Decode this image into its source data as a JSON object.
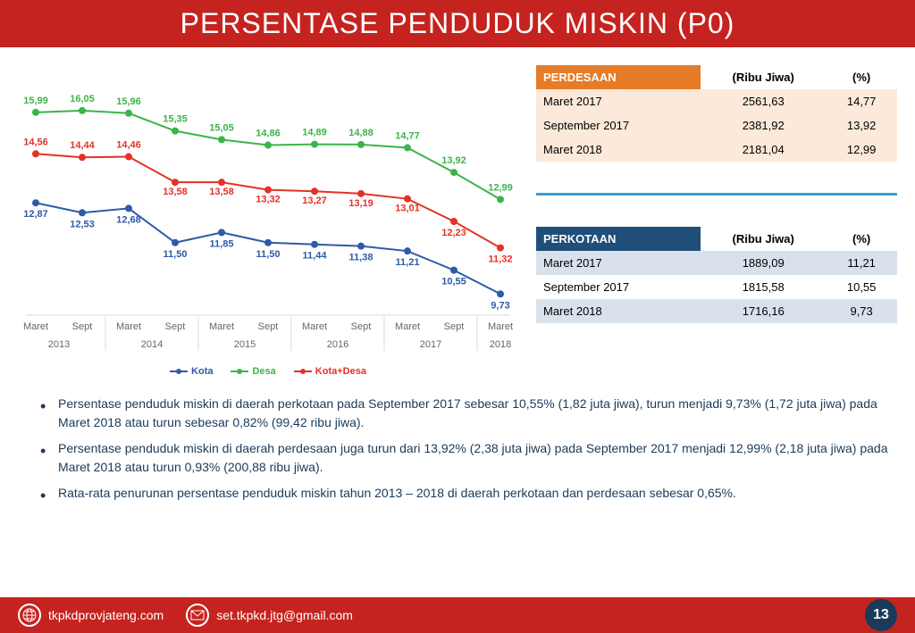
{
  "header": {
    "title": "PERSENTASE PENDUDUK MISKIN (P0)"
  },
  "chart": {
    "type": "line",
    "categories": [
      "Maret",
      "Sept",
      "Maret",
      "Sept",
      "Maret",
      "Sept",
      "Maret",
      "Sept",
      "Maret",
      "Sept",
      "Maret"
    ],
    "years": [
      "2013",
      "2014",
      "2015",
      "2016",
      "2017",
      "2018"
    ],
    "series": [
      {
        "name": "Kota",
        "color": "#2e5aa8",
        "values": [
          12.87,
          12.53,
          12.68,
          11.5,
          11.85,
          11.5,
          11.44,
          11.38,
          11.21,
          10.55,
          9.73
        ]
      },
      {
        "name": "Desa",
        "color": "#3bb44a",
        "values": [
          15.99,
          16.05,
          15.96,
          15.35,
          15.05,
          14.86,
          14.89,
          14.88,
          14.77,
          13.92,
          12.99
        ]
      },
      {
        "name": "Kota+Desa",
        "color": "#e33226",
        "values": [
          14.56,
          14.44,
          14.46,
          13.58,
          13.58,
          13.32,
          13.27,
          13.19,
          13.01,
          12.23,
          11.32
        ]
      }
    ],
    "ylim": [
      9,
      17
    ],
    "marker_radius": 4,
    "line_width": 2,
    "label_fontsize": 11,
    "axis_fontsize": 11,
    "gridline_color": "#d9d9d9",
    "background_color": "#ffffff"
  },
  "tables": {
    "perdesaan": {
      "header": "PERDESAAN",
      "header_bg": "#e67c28",
      "row_bg": "#fce9d9",
      "columns": [
        "",
        "(Ribu Jiwa)",
        "(%)"
      ],
      "rows": [
        [
          "Maret 2017",
          "2561,63",
          "14,77"
        ],
        [
          "September 2017",
          "2381,92",
          "13,92"
        ],
        [
          "Maret 2018",
          "2181,04",
          "12,99"
        ]
      ]
    },
    "perkotaan": {
      "header": "PERKOTAAN",
      "header_bg": "#1f4e79",
      "alt_bg": "#d9e2ec",
      "columns": [
        "",
        "(Ribu Jiwa)",
        "(%)"
      ],
      "rows": [
        [
          "Maret 2017",
          "1889,09",
          "11,21"
        ],
        [
          "September 2017",
          "1815,58",
          "10,55"
        ],
        [
          "Maret 2018",
          "1716,16",
          "9,73"
        ]
      ]
    }
  },
  "bullets": [
    "Persentase penduduk miskin di daerah perkotaan pada September 2017 sebesar 10,55% (1,82 juta jiwa), turun menjadi 9,73% (1,72 juta jiwa) pada Maret 2018 atau turun sebesar 0,82% (99,42 ribu jiwa).",
    "Persentase penduduk miskin di daerah perdesaan juga turun dari 13,92% (2,38 juta jiwa) pada September 2017 menjadi 12,99% (2,18 juta jiwa) pada Maret 2018 atau turun 0,93% (200,88 ribu jiwa).",
    "Rata-rata penurunan persentase penduduk miskin tahun 2013 – 2018 di daerah perkotaan dan perdesaan sebesar 0,65%."
  ],
  "footer": {
    "website": "tkpkdprovjateng.com",
    "email": "set.tkpkd.jtg@gmail.com",
    "page": "13"
  }
}
